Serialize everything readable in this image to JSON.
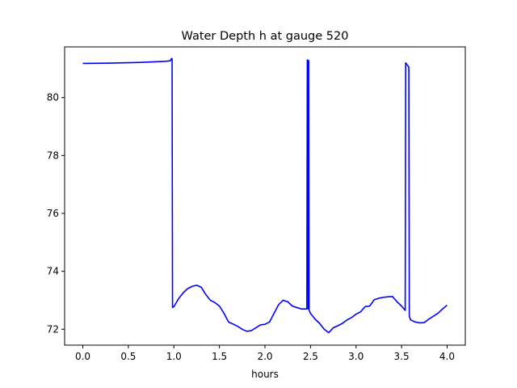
{
  "chart_data": {
    "type": "line",
    "title": "Water Depth h at gauge 520",
    "xlabel": "hours",
    "ylabel": "",
    "xlim": [
      -0.2,
      4.2
    ],
    "ylim": [
      71.45,
      81.75
    ],
    "grid": false,
    "legend": "none",
    "x_ticks": [
      {
        "value": 0.0,
        "label": "0.0"
      },
      {
        "value": 0.5,
        "label": "0.5"
      },
      {
        "value": 1.0,
        "label": "1.0"
      },
      {
        "value": 1.5,
        "label": "1.5"
      },
      {
        "value": 2.0,
        "label": "2.0"
      },
      {
        "value": 2.5,
        "label": "2.5"
      },
      {
        "value": 3.0,
        "label": "3.0"
      },
      {
        "value": 3.5,
        "label": "3.5"
      },
      {
        "value": 4.0,
        "label": "4.0"
      }
    ],
    "y_ticks": [
      {
        "value": 72,
        "label": "72"
      },
      {
        "value": 74,
        "label": "74"
      },
      {
        "value": 76,
        "label": "76"
      },
      {
        "value": 78,
        "label": "78"
      },
      {
        "value": 80,
        "label": "80"
      }
    ],
    "series": [
      {
        "color": "#0000ff",
        "x": [
          0.0,
          0.3,
          0.6,
          0.9,
          0.96,
          0.975,
          0.98,
          0.985,
          1.0,
          1.05,
          1.1,
          1.15,
          1.2,
          1.25,
          1.3,
          1.35,
          1.4,
          1.45,
          1.5,
          1.55,
          1.6,
          1.65,
          1.7,
          1.75,
          1.8,
          1.85,
          1.9,
          1.95,
          2.0,
          2.05,
          2.1,
          2.15,
          2.2,
          2.25,
          2.3,
          2.35,
          2.4,
          2.46,
          2.465,
          2.47,
          2.475,
          2.48,
          2.485,
          2.5,
          2.55,
          2.6,
          2.65,
          2.7,
          2.75,
          2.8,
          2.85,
          2.9,
          2.95,
          3.0,
          3.05,
          3.1,
          3.15,
          3.2,
          3.25,
          3.3,
          3.35,
          3.4,
          3.45,
          3.5,
          3.54,
          3.545,
          3.55,
          3.58,
          3.585,
          3.6,
          3.65,
          3.7,
          3.75,
          3.8,
          3.85,
          3.9,
          3.95,
          4.0
        ],
        "y": [
          81.18,
          81.19,
          81.21,
          81.25,
          81.27,
          81.35,
          81.34,
          72.75,
          72.78,
          73.05,
          73.25,
          73.4,
          73.48,
          73.52,
          73.45,
          73.2,
          73.0,
          72.92,
          72.8,
          72.55,
          72.25,
          72.18,
          72.1,
          72.0,
          71.93,
          71.95,
          72.05,
          72.15,
          72.17,
          72.25,
          72.55,
          72.85,
          73.0,
          72.95,
          72.8,
          72.75,
          72.7,
          72.7,
          81.3,
          81.25,
          72.7,
          81.28,
          72.65,
          72.55,
          72.35,
          72.2,
          72.0,
          71.88,
          72.05,
          72.12,
          72.2,
          72.32,
          72.4,
          72.52,
          72.6,
          72.78,
          72.8,
          73.02,
          73.07,
          73.1,
          73.12,
          73.13,
          72.95,
          72.8,
          72.65,
          81.2,
          81.18,
          81.05,
          72.45,
          72.32,
          72.25,
          72.22,
          72.23,
          72.35,
          72.45,
          72.55,
          72.7,
          72.83
        ]
      }
    ]
  }
}
